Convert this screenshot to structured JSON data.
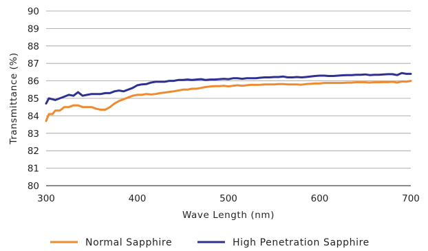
{
  "chart_data": {
    "type": "line",
    "xlabel": "Wave Length (nm)",
    "ylabel": "Transmittance (%)",
    "xlim": [
      300,
      700
    ],
    "ylim": [
      80,
      90
    ],
    "xticks": [
      300,
      400,
      500,
      600,
      700
    ],
    "yticks": [
      80,
      81,
      82,
      83,
      84,
      85,
      86,
      87,
      88,
      89,
      90
    ],
    "grid": "horizontal",
    "legend_position": "bottom",
    "series": [
      {
        "name": "Normal Sapphire",
        "color": "#ee8a2f",
        "points": [
          [
            300,
            83.7
          ],
          [
            303,
            84.1
          ],
          [
            307,
            84.1
          ],
          [
            310,
            84.3
          ],
          [
            315,
            84.3
          ],
          [
            320,
            84.5
          ],
          [
            325,
            84.5
          ],
          [
            330,
            84.6
          ],
          [
            335,
            84.6
          ],
          [
            340,
            84.5
          ],
          [
            345,
            84.5
          ],
          [
            350,
            84.5
          ],
          [
            355,
            84.4
          ],
          [
            360,
            84.35
          ],
          [
            365,
            84.35
          ],
          [
            370,
            84.5
          ],
          [
            375,
            84.7
          ],
          [
            380,
            84.85
          ],
          [
            385,
            84.95
          ],
          [
            390,
            85.05
          ],
          [
            395,
            85.15
          ],
          [
            400,
            85.2
          ],
          [
            405,
            85.2
          ],
          [
            410,
            85.25
          ],
          [
            415,
            85.22
          ],
          [
            420,
            85.25
          ],
          [
            425,
            85.3
          ],
          [
            430,
            85.33
          ],
          [
            435,
            85.37
          ],
          [
            440,
            85.4
          ],
          [
            445,
            85.45
          ],
          [
            450,
            85.5
          ],
          [
            455,
            85.5
          ],
          [
            460,
            85.55
          ],
          [
            465,
            85.55
          ],
          [
            470,
            85.6
          ],
          [
            475,
            85.65
          ],
          [
            480,
            85.68
          ],
          [
            485,
            85.7
          ],
          [
            490,
            85.7
          ],
          [
            495,
            85.72
          ],
          [
            500,
            85.68
          ],
          [
            505,
            85.72
          ],
          [
            510,
            85.75
          ],
          [
            515,
            85.72
          ],
          [
            520,
            85.75
          ],
          [
            525,
            85.78
          ],
          [
            530,
            85.77
          ],
          [
            535,
            85.78
          ],
          [
            540,
            85.8
          ],
          [
            545,
            85.8
          ],
          [
            550,
            85.8
          ],
          [
            555,
            85.82
          ],
          [
            560,
            85.82
          ],
          [
            565,
            85.8
          ],
          [
            570,
            85.8
          ],
          [
            575,
            85.8
          ],
          [
            580,
            85.78
          ],
          [
            585,
            85.82
          ],
          [
            590,
            85.83
          ],
          [
            595,
            85.85
          ],
          [
            600,
            85.85
          ],
          [
            605,
            85.88
          ],
          [
            610,
            85.88
          ],
          [
            615,
            85.88
          ],
          [
            620,
            85.88
          ],
          [
            625,
            85.88
          ],
          [
            630,
            85.9
          ],
          [
            635,
            85.9
          ],
          [
            640,
            85.92
          ],
          [
            645,
            85.92
          ],
          [
            650,
            85.92
          ],
          [
            655,
            85.9
          ],
          [
            660,
            85.92
          ],
          [
            665,
            85.92
          ],
          [
            670,
            85.93
          ],
          [
            675,
            85.93
          ],
          [
            680,
            85.95
          ],
          [
            685,
            85.9
          ],
          [
            690,
            85.97
          ],
          [
            695,
            85.95
          ],
          [
            700,
            86.0
          ]
        ]
      },
      {
        "name": "High Penetration Sapphire",
        "color": "#2e3192",
        "points": [
          [
            300,
            84.7
          ],
          [
            303,
            85.0
          ],
          [
            307,
            84.95
          ],
          [
            310,
            84.9
          ],
          [
            315,
            85.0
          ],
          [
            320,
            85.1
          ],
          [
            325,
            85.2
          ],
          [
            330,
            85.15
          ],
          [
            335,
            85.35
          ],
          [
            340,
            85.15
          ],
          [
            345,
            85.2
          ],
          [
            350,
            85.25
          ],
          [
            355,
            85.25
          ],
          [
            360,
            85.25
          ],
          [
            365,
            85.3
          ],
          [
            370,
            85.3
          ],
          [
            375,
            85.4
          ],
          [
            380,
            85.45
          ],
          [
            385,
            85.4
          ],
          [
            390,
            85.5
          ],
          [
            395,
            85.6
          ],
          [
            400,
            85.75
          ],
          [
            405,
            85.8
          ],
          [
            410,
            85.82
          ],
          [
            415,
            85.9
          ],
          [
            420,
            85.95
          ],
          [
            425,
            85.95
          ],
          [
            430,
            85.95
          ],
          [
            435,
            86.0
          ],
          [
            440,
            86.0
          ],
          [
            445,
            86.05
          ],
          [
            450,
            86.05
          ],
          [
            455,
            86.08
          ],
          [
            460,
            86.05
          ],
          [
            465,
            86.08
          ],
          [
            470,
            86.1
          ],
          [
            475,
            86.05
          ],
          [
            480,
            86.08
          ],
          [
            485,
            86.08
          ],
          [
            490,
            86.1
          ],
          [
            495,
            86.12
          ],
          [
            500,
            86.1
          ],
          [
            505,
            86.15
          ],
          [
            510,
            86.15
          ],
          [
            515,
            86.12
          ],
          [
            520,
            86.15
          ],
          [
            525,
            86.15
          ],
          [
            530,
            86.15
          ],
          [
            535,
            86.18
          ],
          [
            540,
            86.2
          ],
          [
            545,
            86.2
          ],
          [
            550,
            86.22
          ],
          [
            555,
            86.22
          ],
          [
            560,
            86.25
          ],
          [
            565,
            86.2
          ],
          [
            570,
            86.2
          ],
          [
            575,
            86.22
          ],
          [
            580,
            86.2
          ],
          [
            585,
            86.22
          ],
          [
            590,
            86.25
          ],
          [
            595,
            86.28
          ],
          [
            600,
            86.3
          ],
          [
            605,
            86.3
          ],
          [
            610,
            86.28
          ],
          [
            615,
            86.28
          ],
          [
            620,
            86.3
          ],
          [
            625,
            86.32
          ],
          [
            630,
            86.33
          ],
          [
            635,
            86.33
          ],
          [
            640,
            86.35
          ],
          [
            645,
            86.35
          ],
          [
            650,
            86.37
          ],
          [
            655,
            86.33
          ],
          [
            660,
            86.35
          ],
          [
            665,
            86.35
          ],
          [
            670,
            86.37
          ],
          [
            675,
            86.38
          ],
          [
            680,
            86.38
          ],
          [
            685,
            86.33
          ],
          [
            690,
            86.45
          ],
          [
            695,
            86.4
          ],
          [
            700,
            86.4
          ]
        ]
      }
    ]
  }
}
